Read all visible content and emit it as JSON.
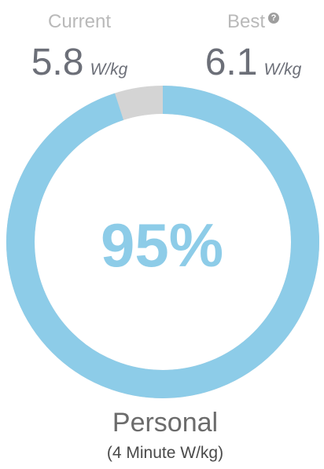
{
  "current": {
    "label": "Current",
    "value": "5.8",
    "unit": "W/kg"
  },
  "best": {
    "label": "Best",
    "value": "6.1",
    "unit": "W/kg",
    "help_icon": "?"
  },
  "gauge": {
    "percent_text": "95%",
    "fraction": 0.95,
    "fill_color": "#8dcce8",
    "remainder_color": "#d4d4d4"
  },
  "caption": {
    "title": "Personal",
    "subtitle": "(4 Minute W/kg)"
  }
}
